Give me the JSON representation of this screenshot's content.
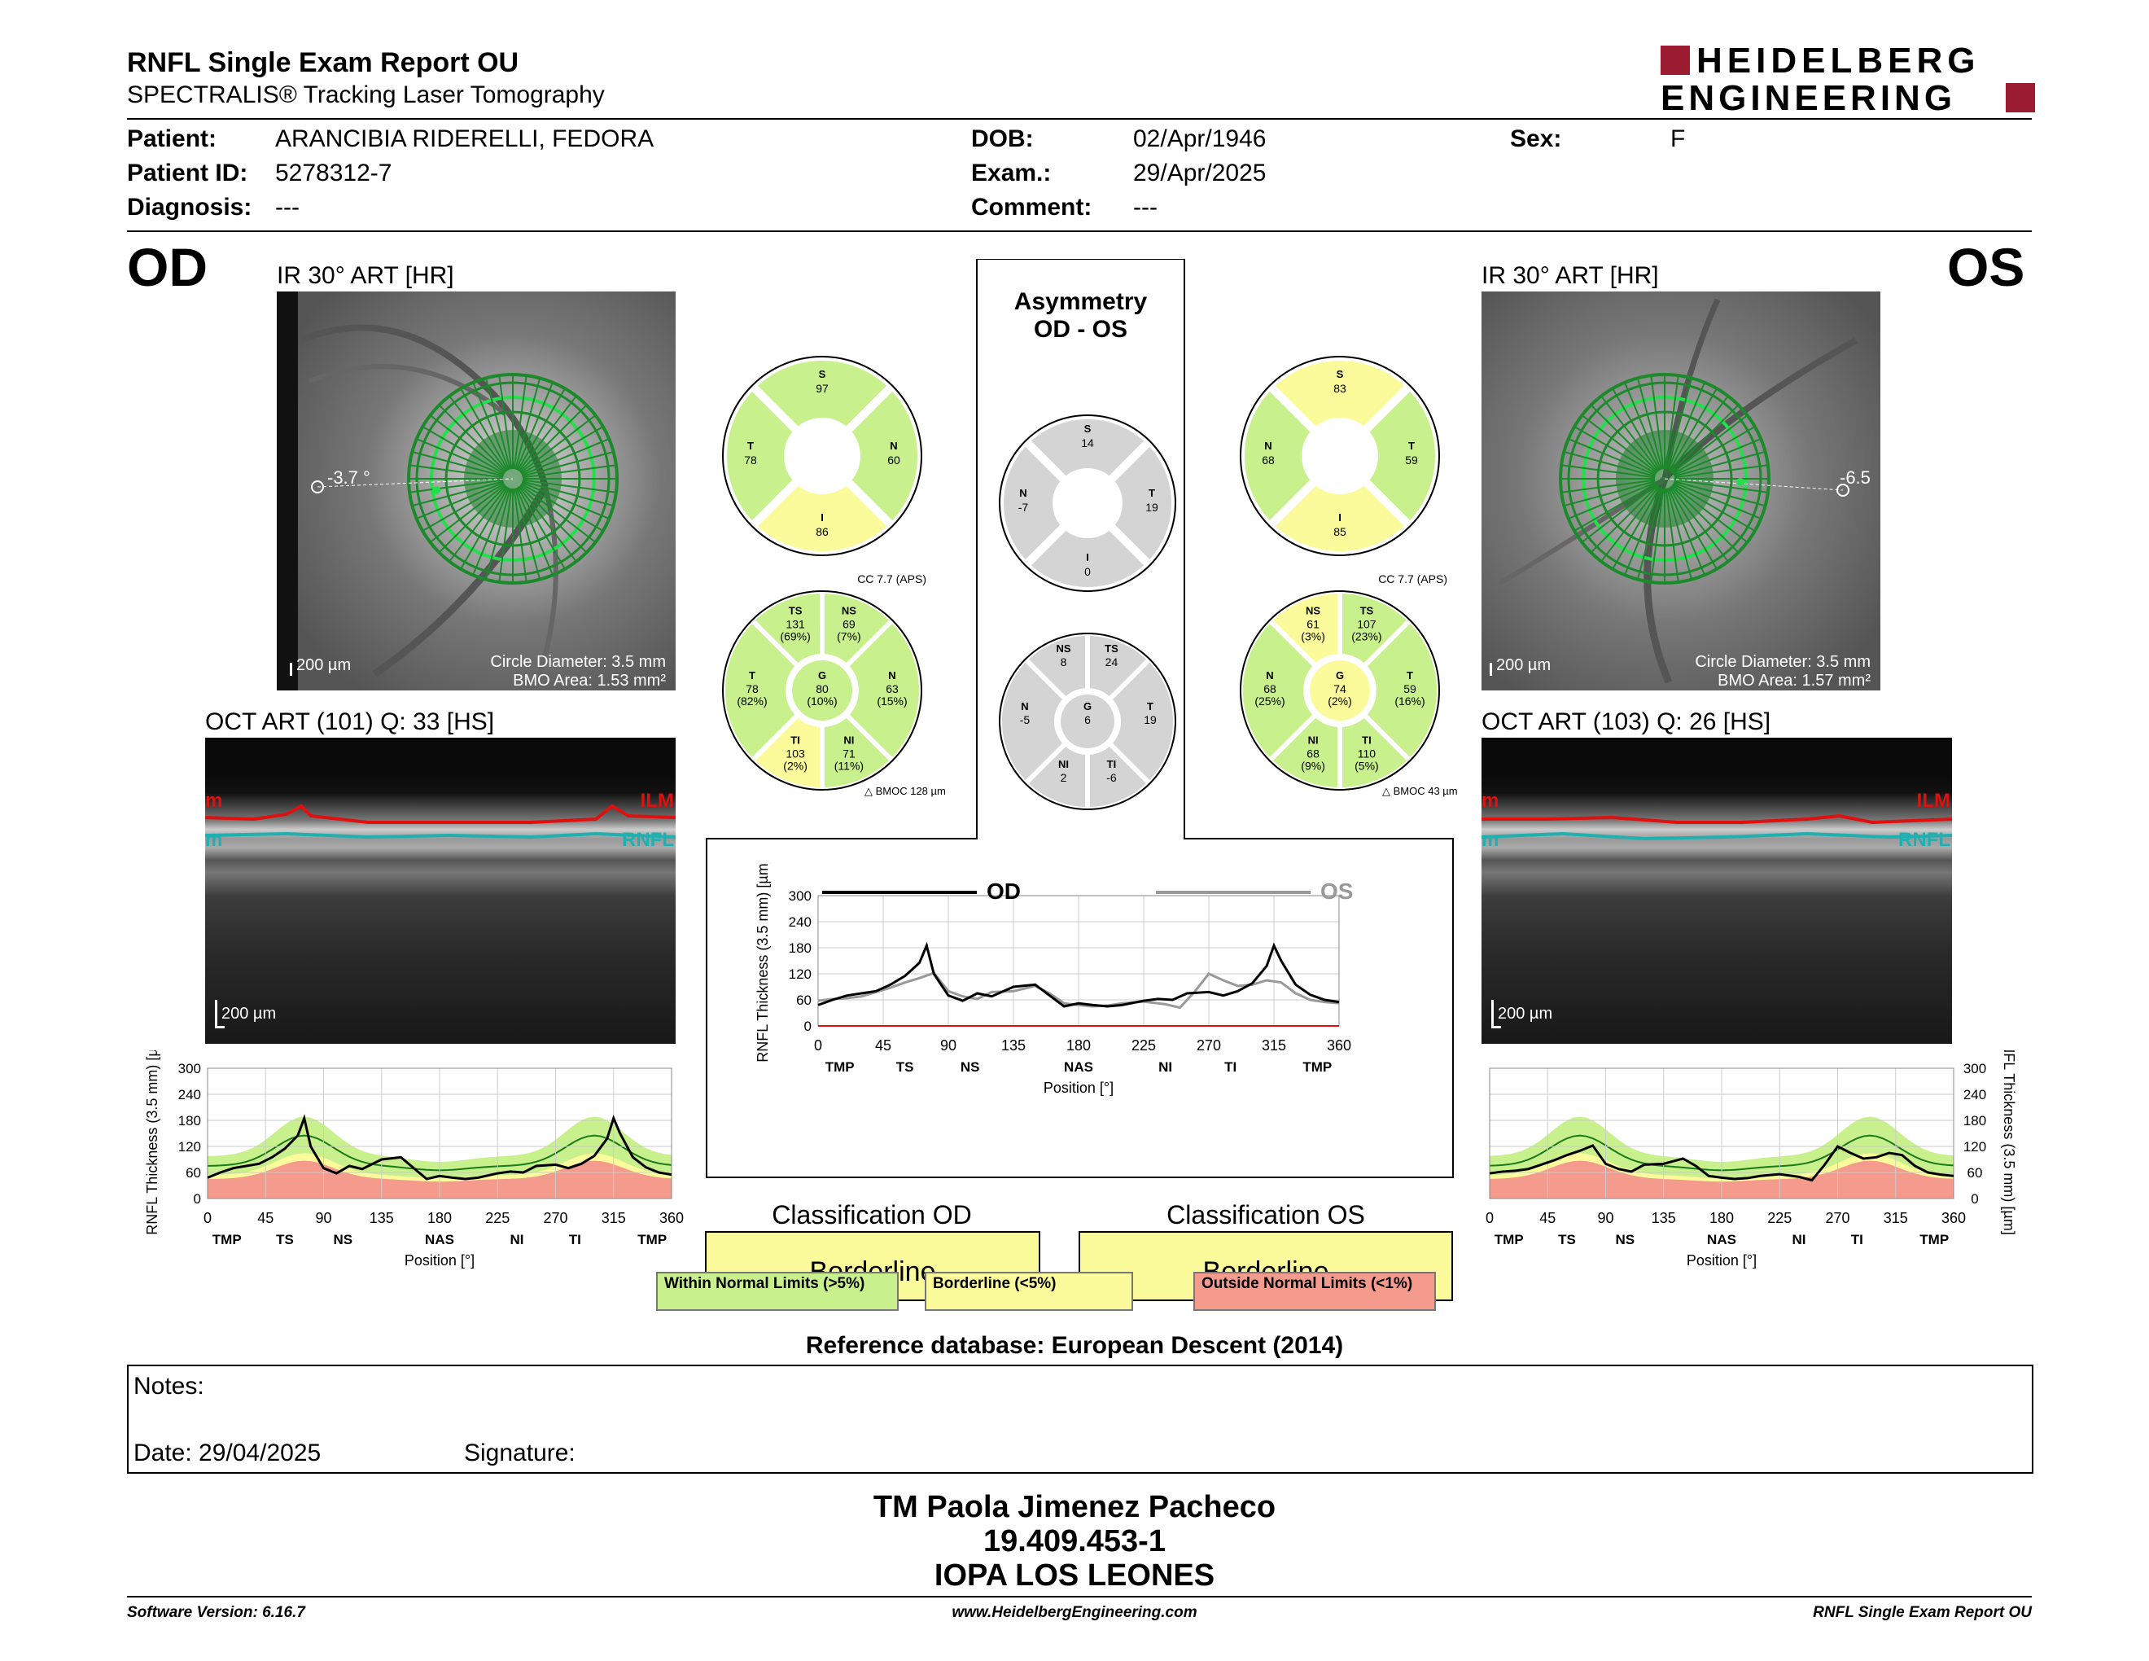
{
  "header": {
    "title": "RNFL Single Exam Report OU",
    "subtitle": "SPECTRALIS® Tracking Laser Tomography",
    "logo_line1": "HEIDELBERG",
    "logo_line2": "ENGINEERING"
  },
  "patient": {
    "patient_label": "Patient:",
    "patient_value": "ARANCIBIA RIDERELLI, FEDORA",
    "id_label": "Patient ID:",
    "id_value": "5278312-7",
    "diag_label": "Diagnosis:",
    "diag_value": "---",
    "dob_label": "DOB:",
    "dob_value": "02/Apr/1946",
    "exam_label": "Exam.:",
    "exam_value": "29/Apr/2025",
    "comment_label": "Comment:",
    "comment_value": "---",
    "sex_label": "Sex:",
    "sex_value": "F"
  },
  "od": {
    "eye": "OD",
    "ir_title": "IR 30° ART [HR]",
    "angle": "-3.7 °",
    "scale": "200 µm",
    "circle_diameter": "Circle Diameter: 3.5 mm",
    "bmo_area": "BMO Area: 1.53 mm²",
    "oct_title": "OCT ART (101) Q: 33 [HS]",
    "ilm": "ILM",
    "rnfl": "RNFL",
    "ilm_short": "m",
    "rnfl_short": "m",
    "oct_scale": "200 µm",
    "sectors4": {
      "S": "97",
      "T": "78",
      "N": "60",
      "I": "86"
    },
    "cc": "CC 7.7 (APS)",
    "bmoc": "BMOC 128 µm",
    "sectors6": {
      "TS": [
        "131",
        "(69%)"
      ],
      "NS": [
        "69",
        "(7%)"
      ],
      "T": [
        "78",
        "(82%)"
      ],
      "G": [
        "80",
        "(10%)"
      ],
      "N": [
        "63",
        "(15%)"
      ],
      "TI": [
        "103",
        "(2%)"
      ],
      "NI": [
        "71",
        "(11%)"
      ]
    },
    "classification_title": "Classification OD",
    "classification": "Borderline"
  },
  "os": {
    "eye": "OS",
    "ir_title": "IR 30° ART [HR]",
    "angle": "-6.5",
    "scale": "200 µm",
    "circle_diameter": "Circle Diameter: 3.5 mm",
    "bmo_area": "BMO Area: 1.57 mm²",
    "oct_title": "OCT ART (103) Q: 26 [HS]",
    "ilm": "ILM",
    "rnfl": "RNFL",
    "ilm_short": "m",
    "rnfl_short": "m",
    "oct_scale": "200 µm",
    "sectors4": {
      "S": "83",
      "N": "68",
      "T": "59",
      "I": "85"
    },
    "cc": "CC 7.7 (APS)",
    "bmoc": "BMOC 43 µm",
    "sectors6": {
      "NS": [
        "61",
        "(3%)"
      ],
      "TS": [
        "107",
        "(23%)"
      ],
      "N": [
        "68",
        "(25%)"
      ],
      "G": [
        "74",
        "(2%)"
      ],
      "T": [
        "59",
        "(16%)"
      ],
      "NI": [
        "68",
        "(9%)"
      ],
      "TI": [
        "110",
        "(5%)"
      ]
    },
    "classification_title": "Classification OS",
    "classification": "Borderline"
  },
  "asymmetry": {
    "title1": "Asymmetry",
    "title2": "OD - OS",
    "sectors4": {
      "S": "14",
      "N": "-7",
      "T": "19",
      "I": "0"
    },
    "sectors6": {
      "NS": "8",
      "TS": "24",
      "N": "-5",
      "G": "6",
      "T": "19",
      "NI": "2",
      "TI": "-6"
    }
  },
  "sector_labels": {
    "S": "S",
    "T": "T",
    "N": "N",
    "I": "I",
    "TS": "TS",
    "NS": "NS",
    "TI": "TI",
    "NI": "NI",
    "G": "G"
  },
  "colors": {
    "green": "#c8f08c",
    "yellow": "#fbfb9b",
    "red": "#f49b8e",
    "gray": "#d4d4d4",
    "ilm": "#e01010",
    "rnfl": "#20b0b0",
    "logo_red": "#9b1b30"
  },
  "legend": {
    "wnl": "Within Normal Limits (>5%)",
    "bl": "Borderline (<5%)",
    "onl": "Outside Normal Limits (<1%)"
  },
  "reference": "Reference database: European Descent (2014)",
  "notes": {
    "notes_label": "Notes:",
    "date_label": "Date: 29/04/2025",
    "signature_label": "Signature:"
  },
  "signature": {
    "line1": "TM Paola Jimenez Pacheco",
    "line2": "19.409.453-1",
    "line3": "IOPA LOS LEONES"
  },
  "footer": {
    "left": "Software Version: 6.16.7",
    "center": "www.HeidelbergEngineering.com",
    "right": "RNFL Single Exam Report OU"
  },
  "chart_data": [
    {
      "type": "line",
      "title": "",
      "xlabel": "Position [°]",
      "ylabel": "RNFL Thickness (3.5 mm) [µm]",
      "xlim": [
        0,
        360
      ],
      "ylim": [
        0,
        300
      ],
      "xticks": [
        0,
        45,
        90,
        135,
        180,
        225,
        270,
        315,
        360
      ],
      "yticks": [
        0,
        60,
        120,
        180,
        240,
        300
      ],
      "sector_labels": [
        "TMP",
        "TS",
        "NS",
        "NAS",
        "NI",
        "TI",
        "TMP"
      ],
      "series": [
        {
          "name": "OD",
          "x": [
            0,
            10,
            20,
            30,
            40,
            50,
            60,
            70,
            75,
            80,
            90,
            100,
            110,
            120,
            135,
            150,
            160,
            170,
            180,
            190,
            200,
            210,
            225,
            235,
            245,
            255,
            270,
            280,
            290,
            300,
            310,
            315,
            320,
            330,
            340,
            350,
            360
          ],
          "y": [
            48,
            60,
            70,
            75,
            80,
            95,
            115,
            145,
            185,
            120,
            70,
            58,
            75,
            68,
            90,
            95,
            70,
            45,
            52,
            48,
            45,
            48,
            58,
            62,
            60,
            75,
            78,
            70,
            80,
            98,
            138,
            185,
            150,
            95,
            72,
            60,
            55
          ]
        },
        {
          "name": "OS",
          "x": [
            0,
            10,
            20,
            30,
            40,
            50,
            60,
            70,
            80,
            90,
            100,
            110,
            120,
            135,
            150,
            160,
            170,
            180,
            190,
            200,
            210,
            225,
            240,
            250,
            260,
            270,
            280,
            290,
            300,
            310,
            320,
            330,
            340,
            350,
            360
          ],
          "y": [
            58,
            62,
            64,
            68,
            78,
            88,
            100,
            110,
            122,
            80,
            68,
            62,
            78,
            80,
            92,
            75,
            52,
            48,
            45,
            47,
            52,
            56,
            50,
            42,
            78,
            120,
            105,
            92,
            95,
            105,
            100,
            75,
            60,
            55,
            52
          ]
        }
      ]
    },
    {
      "type": "area",
      "title": "",
      "xlabel": "Position [°]",
      "ylabel": "RNFL Thickness (3.5 mm) [µm]",
      "xlim": [
        0,
        360
      ],
      "ylim": [
        0,
        300
      ],
      "series": [
        {
          "name": "OD",
          "x": [
            0,
            10,
            20,
            30,
            40,
            50,
            60,
            70,
            75,
            80,
            90,
            100,
            110,
            120,
            135,
            150,
            160,
            170,
            180,
            190,
            200,
            210,
            225,
            235,
            245,
            255,
            270,
            280,
            290,
            300,
            310,
            315,
            320,
            330,
            340,
            350,
            360
          ],
          "y": [
            48,
            60,
            70,
            75,
            80,
            95,
            115,
            145,
            185,
            120,
            70,
            58,
            75,
            68,
            90,
            95,
            70,
            45,
            52,
            48,
            45,
            48,
            58,
            62,
            60,
            75,
            78,
            70,
            80,
            98,
            138,
            185,
            150,
            95,
            72,
            60,
            55
          ]
        }
      ]
    },
    {
      "type": "area",
      "title": "",
      "xlabel": "Position [°]",
      "ylabel": "RNFL Thickness (3.5 mm) [µm]",
      "xlim": [
        0,
        360
      ],
      "ylim": [
        0,
        300
      ],
      "series": [
        {
          "name": "OS",
          "x": [
            0,
            10,
            20,
            30,
            40,
            50,
            60,
            70,
            80,
            90,
            100,
            110,
            120,
            135,
            150,
            160,
            170,
            180,
            190,
            200,
            210,
            225,
            240,
            250,
            260,
            270,
            280,
            290,
            300,
            310,
            320,
            330,
            340,
            350,
            360
          ],
          "y": [
            58,
            62,
            64,
            68,
            78,
            88,
            100,
            110,
            122,
            80,
            68,
            62,
            78,
            80,
            92,
            75,
            52,
            48,
            45,
            47,
            52,
            56,
            50,
            42,
            78,
            120,
            105,
            92,
            95,
            105,
            100,
            75,
            60,
            55,
            52
          ]
        }
      ]
    }
  ]
}
